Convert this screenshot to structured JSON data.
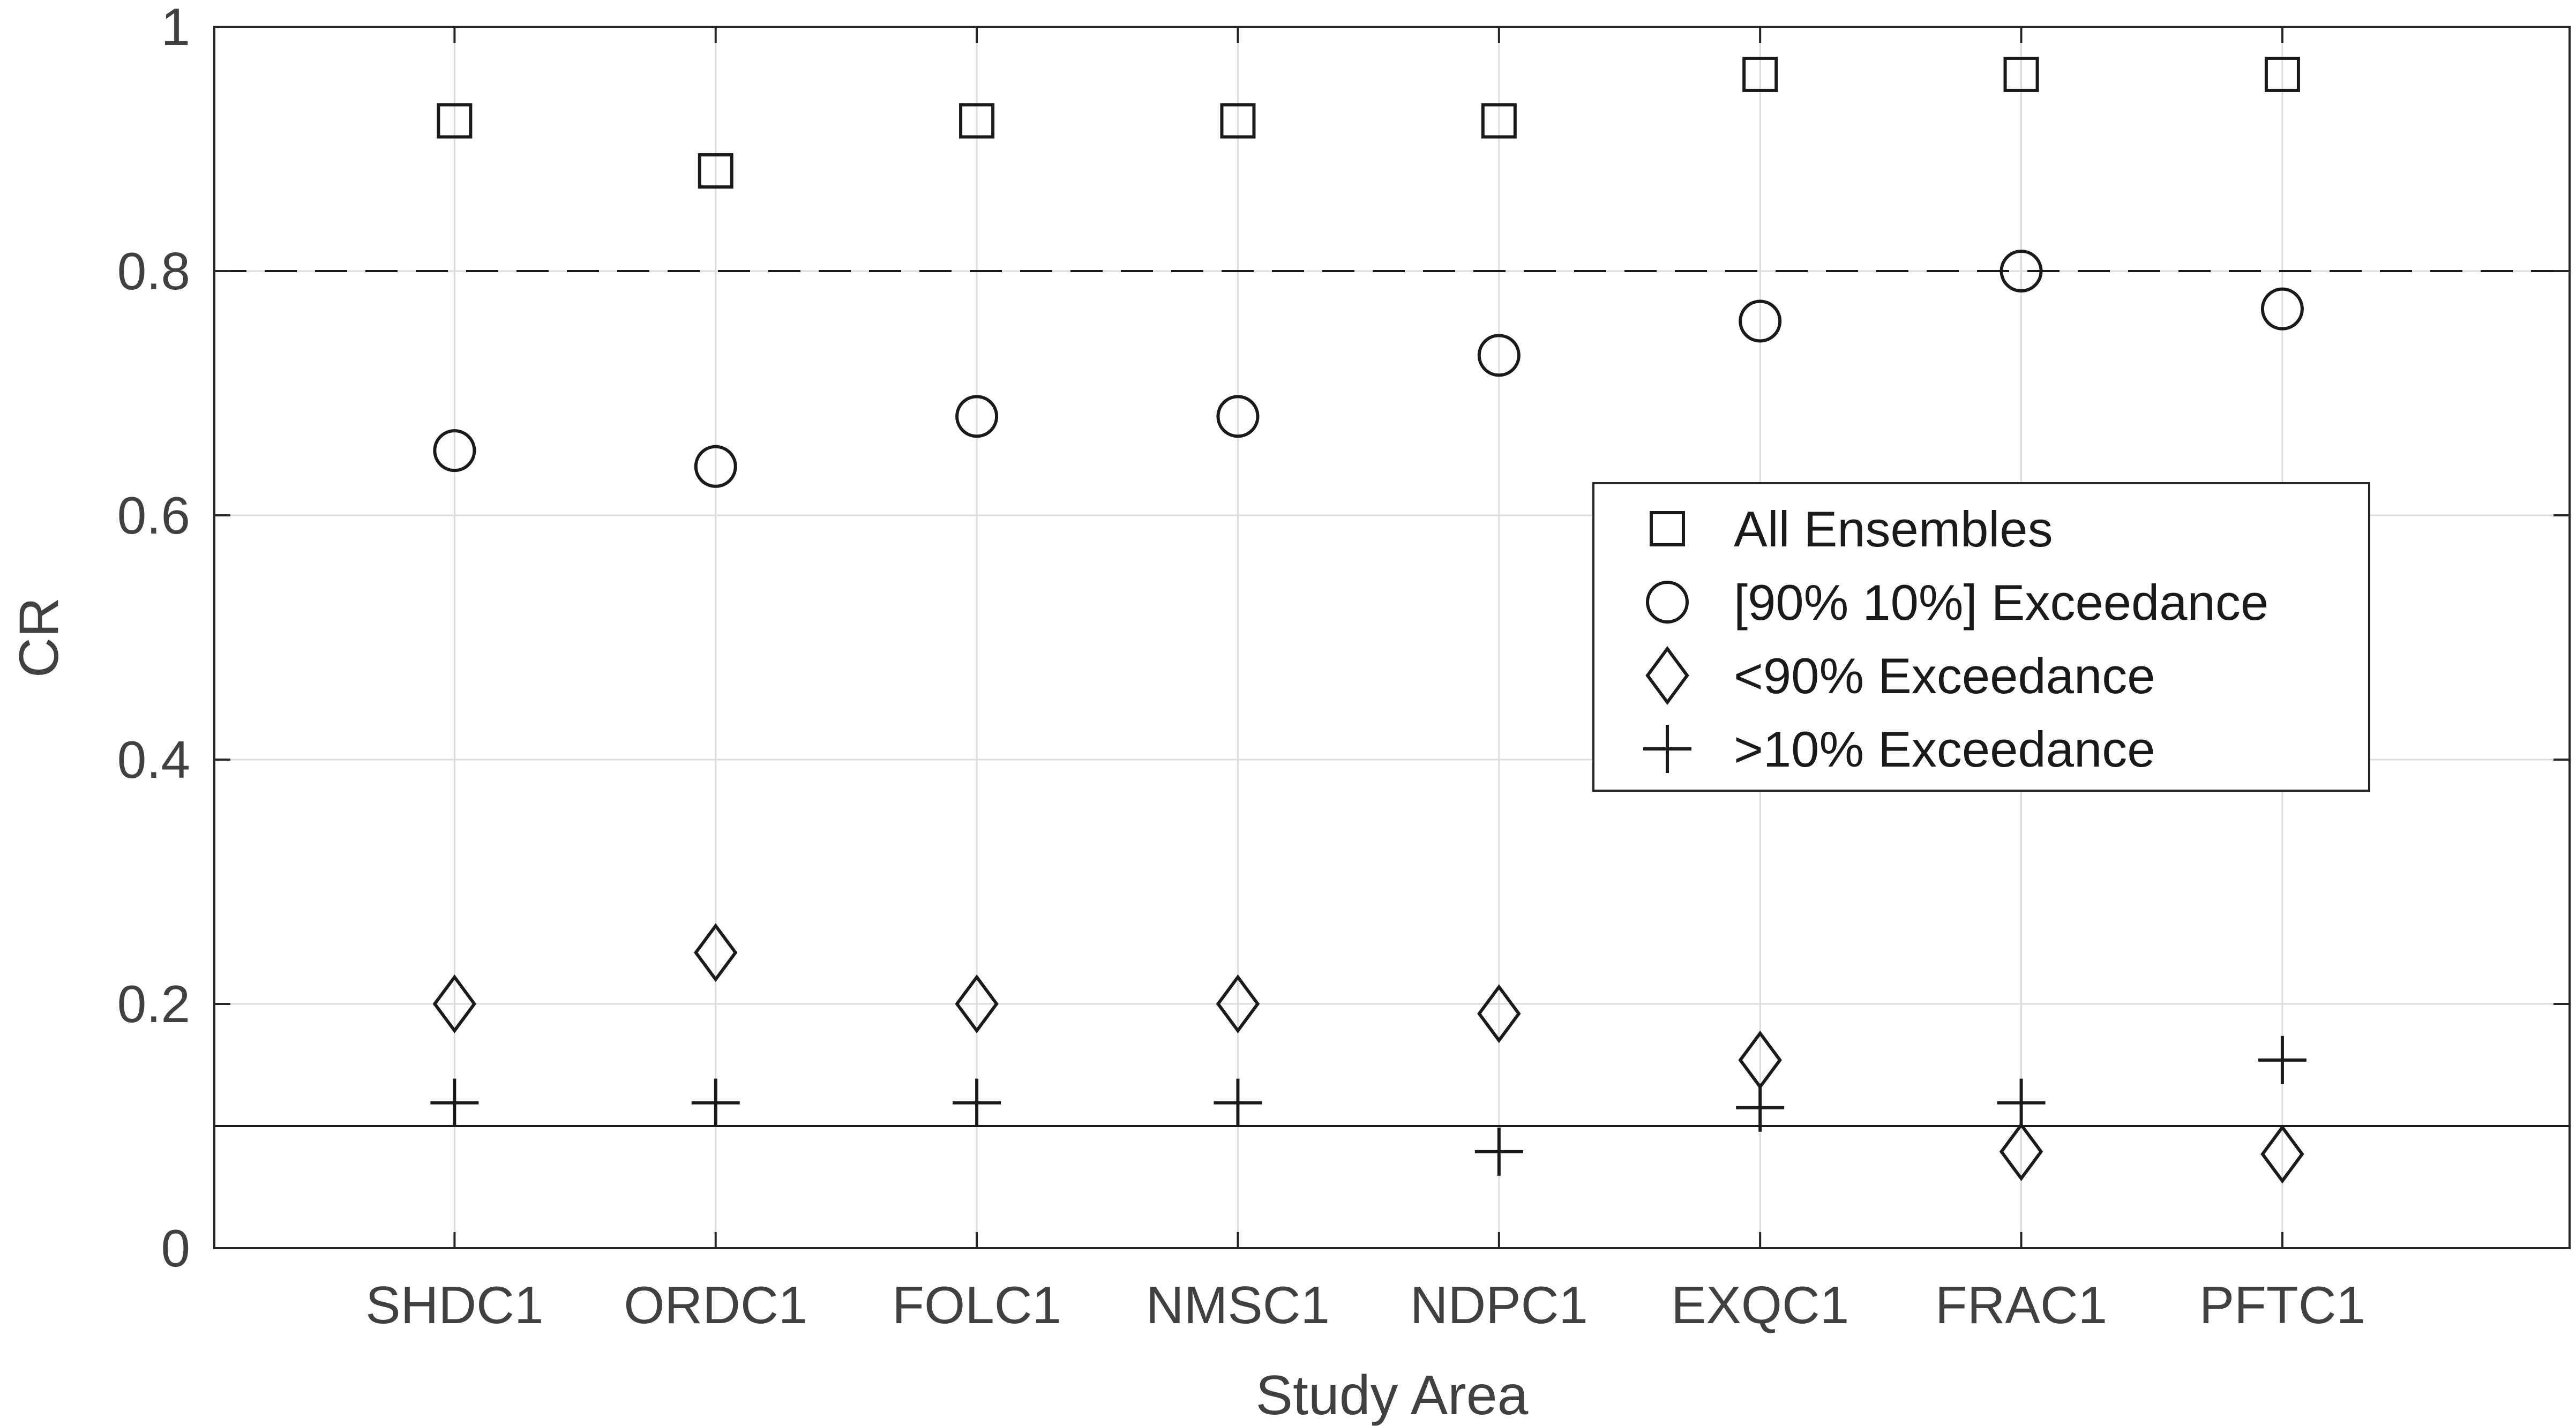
{
  "chart_data": {
    "type": "scatter",
    "title": "",
    "xlabel": "Study Area",
    "ylabel": "CR",
    "categories": [
      "SHDC1",
      "ORDC1",
      "FOLC1",
      "NMSC1",
      "NDPC1",
      "EXQC1",
      "FRAC1",
      "PFTC1"
    ],
    "ylim": [
      0,
      1
    ],
    "yticks": [
      "0",
      "0.2",
      "0.4",
      "0.6",
      "0.8",
      "1"
    ],
    "grid": true,
    "legend_position": "right-center",
    "series": [
      {
        "name": "All Ensembles",
        "marker": "square",
        "values": [
          0.923,
          0.882,
          0.923,
          0.923,
          0.923,
          0.961,
          0.961,
          0.961
        ]
      },
      {
        "name": "[90% 10%] Exceedance",
        "marker": "circle",
        "values": [
          0.653,
          0.64,
          0.681,
          0.681,
          0.731,
          0.759,
          0.8,
          0.769
        ]
      },
      {
        "name": "<90% Exceedance",
        "marker": "diamond",
        "values": [
          0.2,
          0.242,
          0.2,
          0.2,
          0.192,
          0.154,
          0.079,
          0.077
        ]
      },
      {
        "name": ">10% Exceedance",
        "marker": "plus",
        "values": [
          0.119,
          0.119,
          0.119,
          0.119,
          0.079,
          0.115,
          0.119,
          0.154
        ]
      }
    ],
    "reference_lines": [
      {
        "y": 0.8,
        "style": "dashed"
      },
      {
        "y": 0.1,
        "style": "solid"
      }
    ],
    "colors": {
      "marker": "#1a1a1a",
      "grid": "#dcdcdc",
      "axis": "#262626",
      "text": "#404040"
    }
  }
}
